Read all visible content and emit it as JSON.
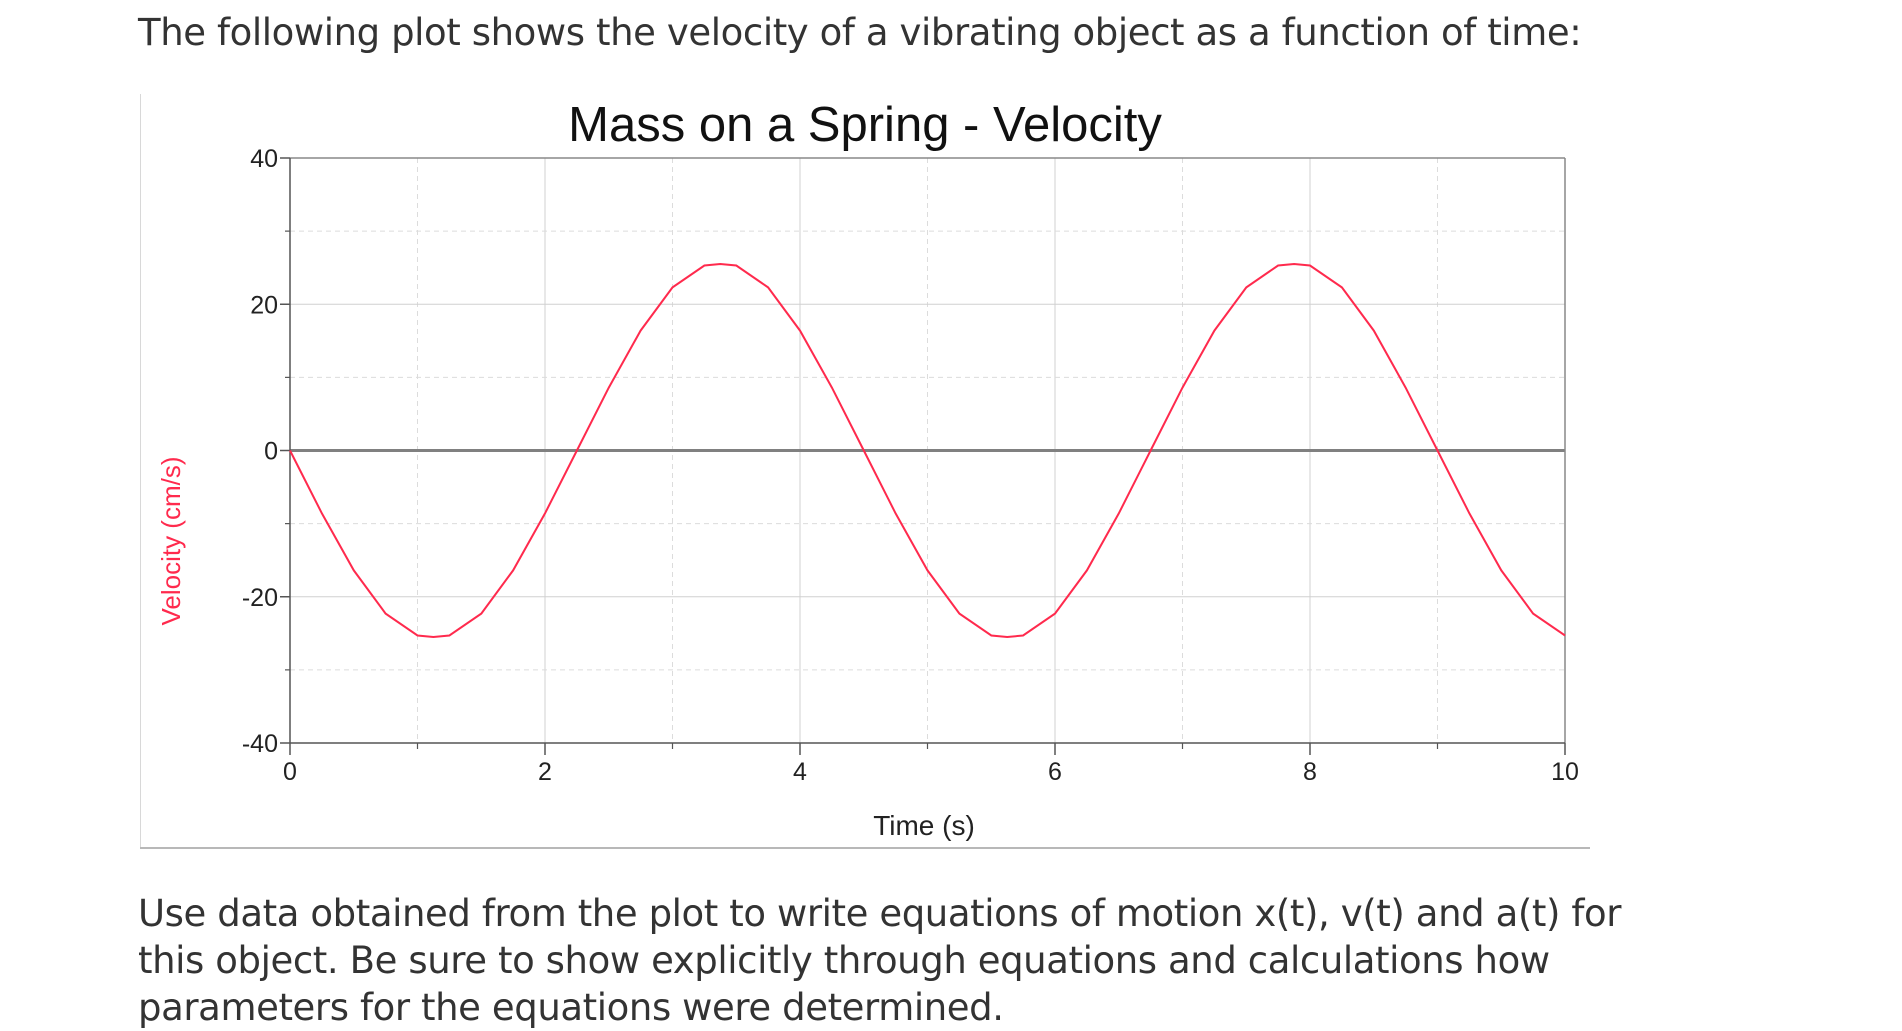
{
  "intro_text": "The following plot shows the velocity of a vibrating object as a function of time:",
  "outro_text": "Use data obtained from the plot to write equations of motion x(t), v(t) and a(t) for this object. Be sure to show explicitly through equations and calculations how parameters for the equations were determined.",
  "colors": {
    "series": "#ff2a4d",
    "y_axis_label": "#ff2a4d",
    "frame": "#888888",
    "zero_line": "#808080",
    "major_grid": "#d0d0d0",
    "minor_grid": "#dcdcdc",
    "left_rule": "#d8d8d8",
    "bottom_rule": "#b8b8b8"
  },
  "chart_data": {
    "type": "line",
    "title": "Mass on a Spring - Velocity",
    "xlabel": "Time (s)",
    "ylabel": "Velocity (cm/s)",
    "xlim": [
      0,
      10
    ],
    "ylim": [
      -40,
      40
    ],
    "x_ticks": [
      0,
      2,
      4,
      6,
      8,
      10
    ],
    "x_tick_labels": [
      "0",
      "2",
      "4",
      "6",
      "8",
      "10"
    ],
    "y_ticks": [
      40,
      20,
      0,
      -20,
      -40
    ],
    "y_tick_labels": [
      "40",
      "20",
      "0",
      "-20",
      "-40"
    ],
    "x_minor_ticks": [
      1,
      3,
      5,
      7,
      9
    ],
    "y_minor_ticks": [
      30,
      10,
      -10,
      -30
    ],
    "grid": true,
    "x": [
      0,
      0.25,
      0.5,
      0.75,
      1,
      1.125,
      1.25,
      1.5,
      1.75,
      2,
      2.25,
      2.5,
      2.75,
      3,
      3.25,
      3.375,
      3.5,
      3.75,
      4,
      4.25,
      4.5,
      4.75,
      5,
      5.25,
      5.5,
      5.625,
      5.75,
      6,
      6.25,
      6.5,
      6.75,
      7,
      7.25,
      7.5,
      7.75,
      7.875,
      8,
      8.25,
      8.5,
      8.75,
      9,
      9.25,
      9.5,
      9.75,
      10
    ],
    "series": [
      {
        "values": [
          0.0,
          -8.6,
          -16.4,
          -22.3,
          -25.3,
          -25.5,
          -25.3,
          -22.3,
          -16.4,
          -8.6,
          0.0,
          8.6,
          16.4,
          22.3,
          25.3,
          25.5,
          25.3,
          22.3,
          16.4,
          8.6,
          0.0,
          -8.6,
          -16.4,
          -22.3,
          -25.3,
          -25.5,
          -25.3,
          -22.3,
          -16.4,
          -8.6,
          0.0,
          8.6,
          16.4,
          22.3,
          25.3,
          25.5,
          25.3,
          22.3,
          16.4,
          8.6,
          0.0,
          -8.6,
          -16.4,
          -22.3,
          -25.3
        ]
      }
    ]
  }
}
